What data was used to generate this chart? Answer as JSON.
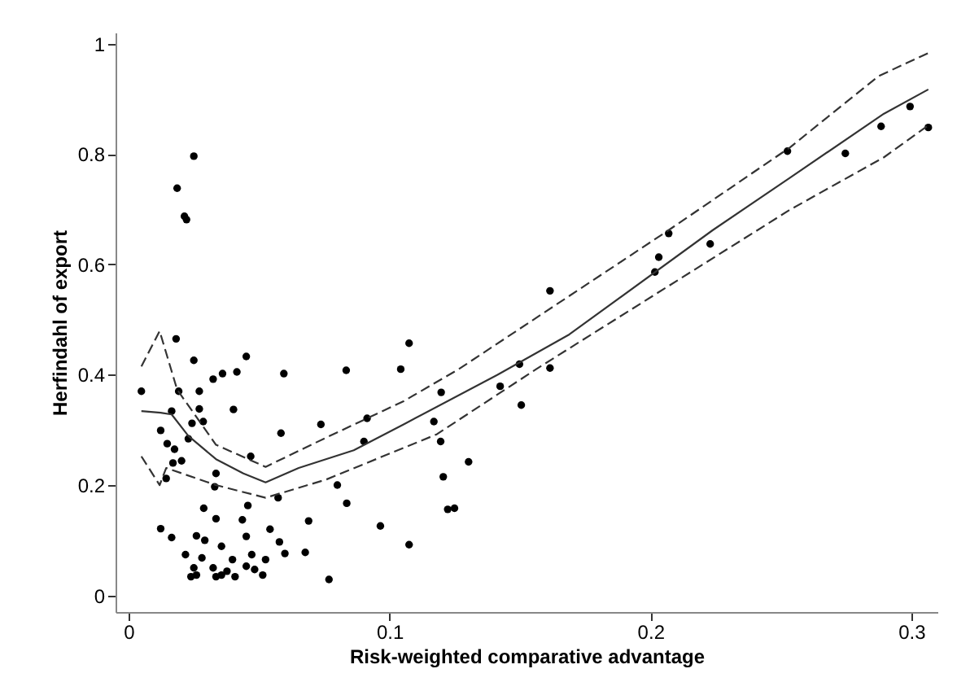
{
  "chart_data": {
    "type": "scatter",
    "xlabel": "Risk-weighted comparative advantage",
    "ylabel": "Herfindahl of export",
    "xlim": [
      -0.005,
      0.31
    ],
    "ylim": [
      -0.03,
      1.02
    ],
    "xticks": [
      0,
      0.1,
      0.2,
      0.3
    ],
    "yticks": [
      0,
      0.2,
      0.4,
      0.6,
      0.8,
      1
    ],
    "grid": false,
    "series": [
      {
        "type": "scatter",
        "color": "#000000",
        "marker": "circle",
        "x": [
          0.0182,
          0.025,
          0.0451,
          0.0324,
          0.036,
          0.0415,
          0.0595,
          0.0834,
          0.1043,
          0.1075,
          0.0049,
          0.0192,
          0.0271,
          0.0165,
          0.0271,
          0.0402,
          0.0243,
          0.0286,
          0.0123,
          0.0584,
          0.0737,
          0.0914,
          0.117,
          0.0148,
          0.0176,
          0.0229,
          0.0902,
          0.017,
          0.0203,
          0.0468,
          0.0144,
          0.0335,
          0.033,
          0.0573,
          0.08,
          0.0836,
          0.0288,
          0.0457,
          0.0335,
          0.0436,
          0.069,
          0.0965,
          0.1075,
          0.0123,
          0.0165,
          0.026,
          0.0292,
          0.0451,
          0.0542,
          0.0578,
          0.0356,
          0.0218,
          0.0281,
          0.0398,
          0.0472,
          0.0525,
          0.0599,
          0.0677,
          0.025,
          0.0324,
          0.0377,
          0.0451,
          0.0483,
          0.0239,
          0.026,
          0.0335,
          0.0356,
          0.0408,
          0.0514,
          0.0768,
          0.025,
          0.0186,
          0.0214,
          0.0222,
          0.1498,
          0.1615,
          0.1615,
          0.2017,
          0.2032,
          0.207,
          0.2229,
          0.2525,
          0.2747,
          0.2884,
          0.2995,
          0.3065,
          0.1198,
          0.1196,
          0.1303,
          0.1206,
          0.1223,
          0.1249,
          0.1424,
          0.1505
        ],
        "values": [
          0.465,
          0.426,
          0.433,
          0.392,
          0.402,
          0.405,
          0.402,
          0.408,
          0.41,
          0.457,
          0.37,
          0.37,
          0.37,
          0.334,
          0.338,
          0.337,
          0.312,
          0.315,
          0.299,
          0.294,
          0.31,
          0.321,
          0.315,
          0.275,
          0.265,
          0.284,
          0.279,
          0.24,
          0.244,
          0.252,
          0.212,
          0.221,
          0.197,
          0.177,
          0.2,
          0.167,
          0.158,
          0.163,
          0.139,
          0.137,
          0.135,
          0.126,
          0.092,
          0.121,
          0.105,
          0.108,
          0.1,
          0.107,
          0.12,
          0.097,
          0.089,
          0.074,
          0.068,
          0.065,
          0.074,
          0.065,
          0.076,
          0.078,
          0.05,
          0.05,
          0.044,
          0.053,
          0.047,
          0.034,
          0.037,
          0.034,
          0.037,
          0.034,
          0.037,
          0.029,
          0.796,
          0.738,
          0.687,
          0.681,
          0.419,
          0.412,
          0.552,
          0.586,
          0.613,
          0.656,
          0.637,
          0.805,
          0.801,
          0.85,
          0.886,
          0.848,
          0.368,
          0.279,
          0.242,
          0.215,
          0.156,
          0.158,
          0.379,
          0.345
        ]
      },
      {
        "type": "line",
        "color": "#333333",
        "line_style": "solid",
        "x": [
          0.0049,
          0.0123,
          0.0165,
          0.0229,
          0.0335,
          0.044,
          0.0525,
          0.0652,
          0.0863,
          0.1054,
          0.1414,
          0.1689,
          0.2239,
          0.2535,
          0.2895,
          0.3065
        ],
        "values": [
          0.334,
          0.331,
          0.328,
          0.289,
          0.247,
          0.221,
          0.205,
          0.231,
          0.263,
          0.31,
          0.4,
          0.473,
          0.662,
          0.757,
          0.873,
          0.917
        ]
      },
      {
        "type": "line",
        "color": "#333333",
        "line_style": "dashed",
        "x": [
          0.0049,
          0.0119,
          0.0186,
          0.0335,
          0.0525,
          0.0757,
          0.1054,
          0.1265,
          0.207,
          0.2535,
          0.2874,
          0.3065
        ],
        "values": [
          0.415,
          0.479,
          0.373,
          0.273,
          0.233,
          0.286,
          0.352,
          0.41,
          0.662,
          0.812,
          0.941,
          0.983
        ]
      },
      {
        "type": "line",
        "color": "#333333",
        "line_style": "dashed",
        "x": [
          0.0049,
          0.0119,
          0.0144,
          0.0335,
          0.0525,
          0.0757,
          0.1181,
          0.1562,
          0.2535,
          0.2895,
          0.3065
        ],
        "values": [
          0.252,
          0.2,
          0.231,
          0.2,
          0.177,
          0.21,
          0.292,
          0.41,
          0.699,
          0.794,
          0.852
        ]
      }
    ]
  }
}
